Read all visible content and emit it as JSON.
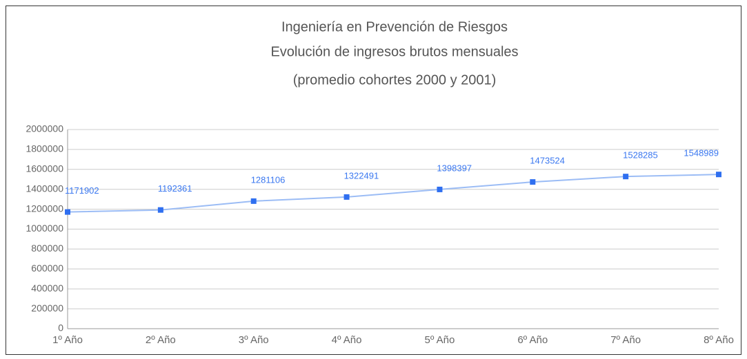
{
  "chart_data": {
    "type": "line",
    "title": "Ingeniería en Prevención de Riesgos",
    "subtitle": [
      "Evolución de ingresos brutos mensuales",
      "(promedio cohortes 2000 y 2001)"
    ],
    "categories": [
      "1º Año",
      "2º Año",
      "3º Año",
      "4º Año",
      "5º Año",
      "6º Año",
      "7º Año",
      "8º Año"
    ],
    "values": [
      1171902,
      1192361,
      1281106,
      1322491,
      1398397,
      1473524,
      1528285,
      1548989
    ],
    "color": "#2f6ff0",
    "ylim": [
      0,
      2000000
    ],
    "yticks": [
      0,
      200000,
      400000,
      600000,
      800000,
      1000000,
      1200000,
      1400000,
      1600000,
      1800000,
      2000000
    ],
    "grid": true
  }
}
